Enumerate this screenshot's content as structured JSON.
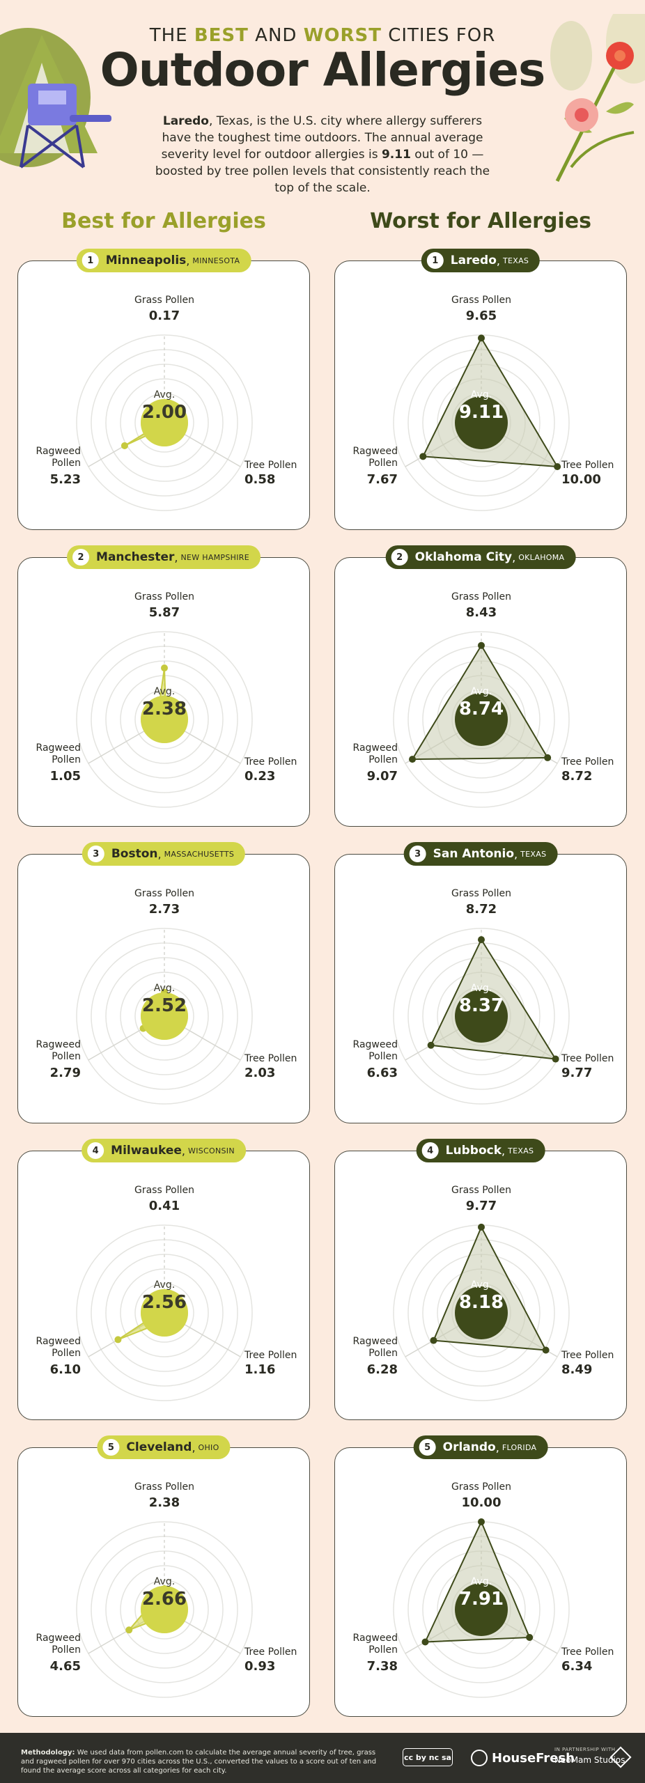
{
  "header": {
    "pre_title_1": "THE ",
    "pre_title_best": "BEST",
    "pre_title_2": " AND ",
    "pre_title_worst": "WORST",
    "pre_title_3": " CITIES FOR",
    "title": "Outdoor Allergies",
    "intro_city": "Laredo",
    "intro_1": ", Texas, is the U.S. city where allergy sufferers have the toughest time outdoors. The annual average severity level for outdoor allergies is ",
    "intro_value": "9.11",
    "intro_2": " out of 10 — boosted by tree pollen levels that consistently reach the top of the scale."
  },
  "columns": {
    "best_title": "Best for Allergies",
    "worst_title": "Worst for Allergies"
  },
  "labels": {
    "grass": "Grass Pollen",
    "tree": "Tree Pollen",
    "ragweed": "Ragweed Pollen",
    "avg": "Avg."
  },
  "colors": {
    "best_fill": "#d2d64a",
    "best_dark": "#9aa02a",
    "worst_fill": "#3e4a1a",
    "background": "#fcebdf"
  },
  "chart_data": [
    {
      "type": "radar",
      "group": "best",
      "rank": "1",
      "city": "Minneapolis",
      "state": "MINNESOTA",
      "grass": "0.17",
      "tree": "0.58",
      "ragweed": "5.23",
      "avg": "2.00",
      "scale": [
        0,
        10
      ]
    },
    {
      "type": "radar",
      "group": "best",
      "rank": "2",
      "city": "Manchester",
      "state": "NEW HAMPSHIRE",
      "grass": "5.87",
      "tree": "0.23",
      "ragweed": "1.05",
      "avg": "2.38",
      "scale": [
        0,
        10
      ]
    },
    {
      "type": "radar",
      "group": "best",
      "rank": "3",
      "city": "Boston",
      "state": "MASSACHUSETTS",
      "grass": "2.73",
      "tree": "2.03",
      "ragweed": "2.79",
      "avg": "2.52",
      "scale": [
        0,
        10
      ]
    },
    {
      "type": "radar",
      "group": "best",
      "rank": "4",
      "city": "Milwaukee",
      "state": "WISCONSIN",
      "grass": "0.41",
      "tree": "1.16",
      "ragweed": "6.10",
      "avg": "2.56",
      "scale": [
        0,
        10
      ]
    },
    {
      "type": "radar",
      "group": "best",
      "rank": "5",
      "city": "Cleveland",
      "state": "OHIO",
      "grass": "2.38",
      "tree": "0.93",
      "ragweed": "4.65",
      "avg": "2.66",
      "scale": [
        0,
        10
      ]
    },
    {
      "type": "radar",
      "group": "worst",
      "rank": "1",
      "city": "Laredo",
      "state": "TEXAS",
      "grass": "9.65",
      "tree": "10.00",
      "ragweed": "7.67",
      "avg": "9.11",
      "scale": [
        0,
        10
      ]
    },
    {
      "type": "radar",
      "group": "worst",
      "rank": "2",
      "city": "Oklahoma City",
      "state": "OKLAHOMA",
      "grass": "8.43",
      "tree": "8.72",
      "ragweed": "9.07",
      "avg": "8.74",
      "scale": [
        0,
        10
      ]
    },
    {
      "type": "radar",
      "group": "worst",
      "rank": "3",
      "city": "San Antonio",
      "state": "TEXAS",
      "grass": "8.72",
      "tree": "9.77",
      "ragweed": "6.63",
      "avg": "8.37",
      "scale": [
        0,
        10
      ]
    },
    {
      "type": "radar",
      "group": "worst",
      "rank": "4",
      "city": "Lubbock",
      "state": "TEXAS",
      "grass": "9.77",
      "tree": "8.49",
      "ragweed": "6.28",
      "avg": "8.18",
      "scale": [
        0,
        10
      ]
    },
    {
      "type": "radar",
      "group": "worst",
      "rank": "5",
      "city": "Orlando",
      "state": "FLORIDA",
      "grass": "10.00",
      "tree": "6.34",
      "ragweed": "7.38",
      "avg": "7.91",
      "scale": [
        0,
        10
      ]
    }
  ],
  "footer": {
    "method_label": "Methodology:",
    "method_text": " We used data from pollen.com to calculate the average annual severity of tree, grass and ragweed pollen for over 970 cities across the U.S., converted the values to a score out of ten and found the average score across all categories for each city.",
    "license": "cc by nc sa",
    "brand": "HouseFresh",
    "partner_small": "IN PARTNERSHIP WITH",
    "partner": "NeoMam Studios"
  }
}
